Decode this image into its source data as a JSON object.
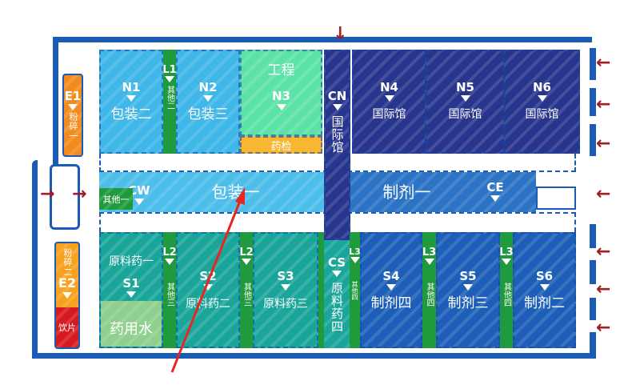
{
  "colors": {
    "frame": "#1a5bb5",
    "packaging_light": "#3fb7e8",
    "engineering": "#5ce2a6",
    "drug_testing": "#f7b731",
    "international": "#27358c",
    "prep": "#1d5fb8",
    "raw": "#1aa59a",
    "other": "#1f9a3c",
    "crush": "#f28c1e",
    "slices": "#d71920",
    "pointer": "#e8251e"
  },
  "halls": {
    "N1": {
      "code": "N1",
      "name": "包装二"
    },
    "N2": {
      "code": "N2",
      "name": "包装三"
    },
    "N3": {
      "code": "N3",
      "top": "工程",
      "bottom": "药检"
    },
    "CN": {
      "code": "CN",
      "name": "国际馆"
    },
    "N4": {
      "code": "N4",
      "name": "国际馆"
    },
    "N5": {
      "code": "N5",
      "name": "国际馆"
    },
    "N6": {
      "code": "N6",
      "name": "国际馆"
    },
    "CW": {
      "code": "CW",
      "name": "包装一"
    },
    "CE": {
      "code": "CE",
      "name": "制剂一"
    },
    "S1": {
      "code": "S1",
      "top": "原料药一",
      "bottom": "药用水"
    },
    "S2": {
      "code": "S2",
      "name": "原料药二"
    },
    "S3": {
      "code": "S3",
      "name": "原料药三"
    },
    "CS": {
      "code": "CS",
      "name": "原料药四"
    },
    "S4": {
      "code": "S4",
      "name": "制剂四"
    },
    "S5": {
      "code": "S5",
      "name": "制剂三"
    },
    "S6": {
      "code": "S6",
      "name": "制剂二"
    },
    "E1": {
      "code": "E1",
      "name": "粉碎一"
    },
    "E2": {
      "code": "E2",
      "top": "粉碎二",
      "bottom": "饮片"
    }
  },
  "strips": {
    "L1": {
      "code": "L1",
      "name": "其他二"
    },
    "L2": {
      "code": "L2",
      "name": "其他三"
    },
    "L3": {
      "code": "L3",
      "name": "其他四"
    },
    "other1": "其他一"
  },
  "arrows": {
    "down": "↓",
    "right": "→",
    "left": "←"
  }
}
